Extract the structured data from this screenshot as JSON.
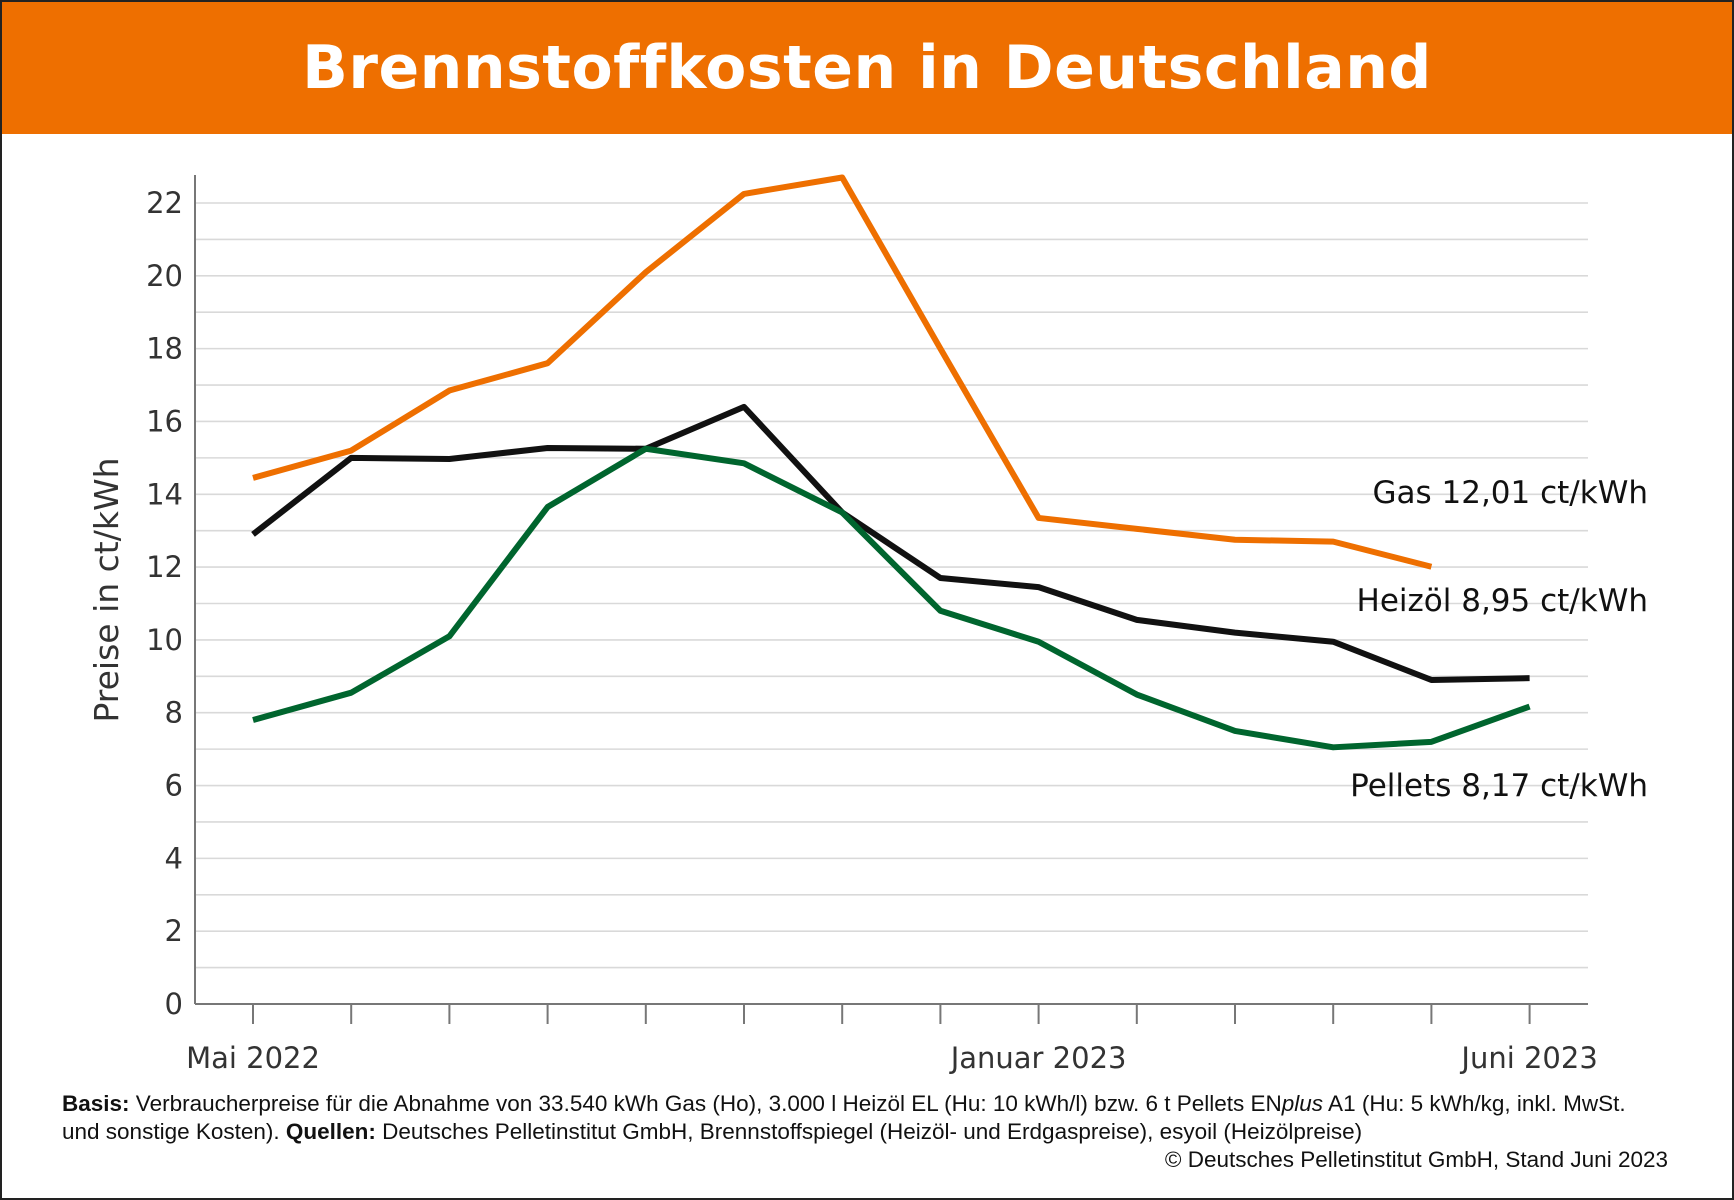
{
  "title": "Brennstoffkosten in Deutschland",
  "chart_data": {
    "type": "line",
    "title": "Brennstoffkosten in Deutschland",
    "ylabel": "Preise in ct/kWh",
    "xlabel": "",
    "ylim": [
      0,
      22.8
    ],
    "yticks": [
      0,
      2,
      4,
      6,
      8,
      10,
      12,
      14,
      16,
      18,
      20,
      22
    ],
    "grid": "horizontal, every 1",
    "x": [
      "2022-05",
      "2022-06",
      "2022-07",
      "2022-08",
      "2022-09",
      "2022-10",
      "2022-11",
      "2022-12",
      "2023-01",
      "2023-02",
      "2023-03",
      "2023-04",
      "2023-05",
      "2023-06"
    ],
    "xtick_labels": [
      {
        "index": 0,
        "label": "Mai 2022"
      },
      {
        "index": 8,
        "label": "Januar 2023"
      },
      {
        "index": 13,
        "label": "Juni 2023"
      }
    ],
    "series": [
      {
        "name": "Gas",
        "color": "#EE6F00",
        "end_label": "12,01 ct/kWh",
        "values": [
          14.45,
          15.2,
          16.85,
          17.6,
          20.1,
          22.25,
          22.7,
          18.0,
          13.35,
          13.05,
          12.75,
          12.7,
          12.01,
          null
        ]
      },
      {
        "name": "Heizöl",
        "color": "#111111",
        "end_label": "8,95 ct/kWh",
        "values": [
          12.9,
          15.0,
          14.97,
          15.27,
          15.25,
          16.4,
          13.5,
          11.7,
          11.45,
          10.55,
          10.2,
          9.95,
          8.9,
          8.95
        ]
      },
      {
        "name": "Pellets",
        "color": "#00652E",
        "end_label": "8,17 ct/kWh",
        "values": [
          7.8,
          8.55,
          10.1,
          13.65,
          15.25,
          14.85,
          13.5,
          10.8,
          9.95,
          8.5,
          7.5,
          7.05,
          7.2,
          8.17
        ]
      }
    ]
  },
  "footer": {
    "basis_label": "Basis:",
    "basis_text": " Verbraucherpreise für die Abnahme von 33.540 kWh Gas (Ho), 3.000 l Heizöl EL (Hu: 10 kWh/l) bzw. 6 t Pellets EN",
    "basis_italic": "plus",
    "basis_text2": " A1 (Hu: 5 kWh/kg, inkl. MwSt. und sonstige Kosten). ",
    "sources_label": "Quellen:",
    "sources_text": " Deutsches Pelletinstitut GmbH, Brennstoffspiegel (Heizöl- und Erdgaspreise), esyoil (Heizölpreise)",
    "copyright": "© Deutsches Pelletinstitut GmbH, Stand Juni 2023"
  }
}
